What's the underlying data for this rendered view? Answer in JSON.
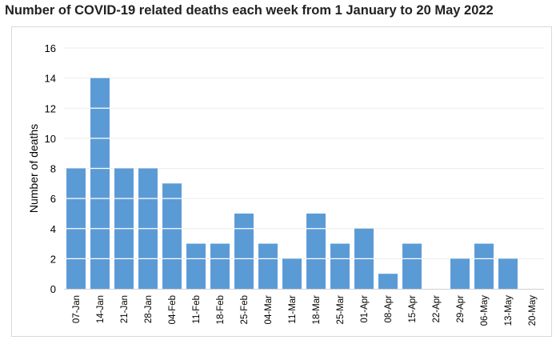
{
  "chart_data": {
    "type": "bar",
    "title": "Number of COVID-19 related deaths each week from 1 January to 20 May 2022",
    "xlabel": "",
    "ylabel": "Number of deaths",
    "ylim": [
      0,
      16
    ],
    "yticks": [
      0,
      2,
      4,
      6,
      8,
      10,
      12,
      14,
      16
    ],
    "grid": true,
    "bar_color": "#5b9bd5",
    "categories": [
      "07-Jan",
      "14-Jan",
      "21-Jan",
      "28-Jan",
      "04-Feb",
      "11-Feb",
      "18-Feb",
      "25-Feb",
      "04-Mar",
      "11-Mar",
      "18-Mar",
      "25-Mar",
      "01-Apr",
      "08-Apr",
      "15-Apr",
      "22-Apr",
      "29-Apr",
      "06-May",
      "13-May",
      "20-May"
    ],
    "values": [
      8,
      14,
      8,
      8,
      7,
      3,
      3,
      5,
      3,
      2,
      5,
      3,
      4,
      1,
      3,
      0,
      2,
      3,
      2,
      0
    ]
  }
}
